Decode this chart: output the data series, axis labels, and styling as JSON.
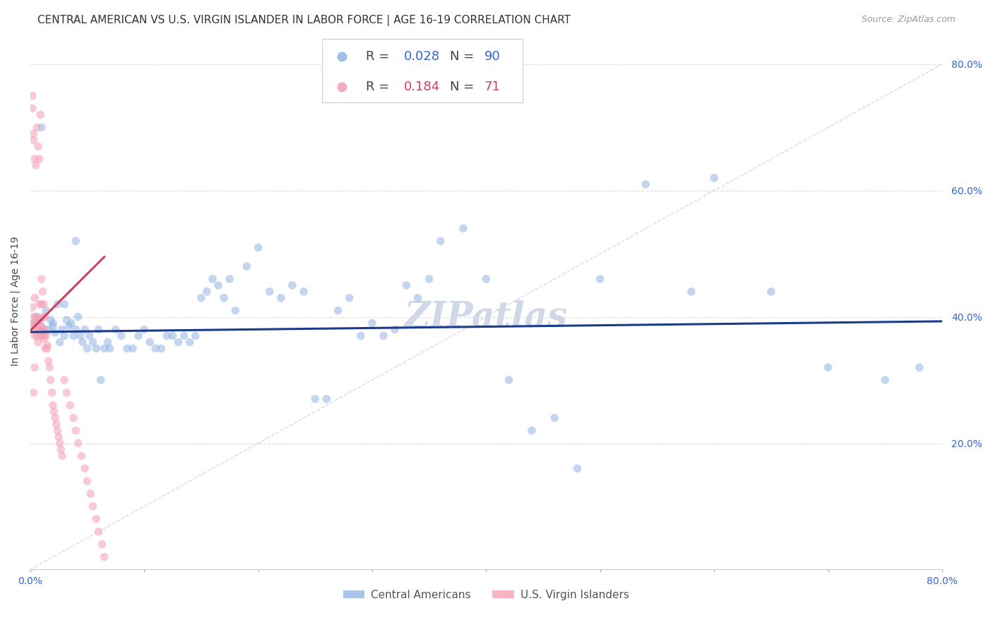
{
  "title": "CENTRAL AMERICAN VS U.S. VIRGIN ISLANDER IN LABOR FORCE | AGE 16-19 CORRELATION CHART",
  "source": "Source: ZipAtlas.com",
  "ylabel_label": "In Labor Force | Age 16-19",
  "xlim": [
    0.0,
    0.8
  ],
  "ylim": [
    0.0,
    0.85
  ],
  "xticks": [
    0.0,
    0.1,
    0.2,
    0.3,
    0.4,
    0.5,
    0.6,
    0.7,
    0.8
  ],
  "xticklabels": [
    "0.0%",
    "",
    "",
    "",
    "",
    "",
    "",
    "",
    "80.0%"
  ],
  "ytick_positions": [
    0.2,
    0.4,
    0.6,
    0.8
  ],
  "yticklabels": [
    "20.0%",
    "40.0%",
    "60.0%",
    "80.0%"
  ],
  "blue_color": "#92b4e3",
  "pink_color": "#f4a0b4",
  "line_blue": "#1a3a8a",
  "line_pink": "#d04060",
  "diagonal_color": "#cccccc",
  "R_blue": 0.028,
  "N_blue": 90,
  "R_pink": 0.184,
  "N_pink": 71,
  "blue_scatter_x": [
    0.004,
    0.006,
    0.008,
    0.01,
    0.012,
    0.014,
    0.016,
    0.018,
    0.02,
    0.022,
    0.024,
    0.026,
    0.028,
    0.03,
    0.032,
    0.034,
    0.036,
    0.038,
    0.04,
    0.042,
    0.044,
    0.046,
    0.048,
    0.05,
    0.052,
    0.055,
    0.058,
    0.06,
    0.062,
    0.065,
    0.068,
    0.07,
    0.075,
    0.08,
    0.085,
    0.09,
    0.095,
    0.1,
    0.105,
    0.11,
    0.115,
    0.12,
    0.125,
    0.13,
    0.135,
    0.14,
    0.145,
    0.15,
    0.155,
    0.16,
    0.165,
    0.17,
    0.175,
    0.18,
    0.19,
    0.2,
    0.21,
    0.22,
    0.23,
    0.24,
    0.25,
    0.26,
    0.27,
    0.28,
    0.29,
    0.3,
    0.31,
    0.32,
    0.33,
    0.34,
    0.35,
    0.36,
    0.38,
    0.4,
    0.42,
    0.44,
    0.46,
    0.48,
    0.5,
    0.54,
    0.58,
    0.6,
    0.65,
    0.7,
    0.75,
    0.78,
    0.01,
    0.02,
    0.03,
    0.04
  ],
  "blue_scatter_y": [
    0.39,
    0.4,
    0.395,
    0.385,
    0.375,
    0.41,
    0.38,
    0.395,
    0.385,
    0.375,
    0.42,
    0.36,
    0.38,
    0.37,
    0.395,
    0.385,
    0.39,
    0.37,
    0.38,
    0.4,
    0.37,
    0.36,
    0.38,
    0.35,
    0.37,
    0.36,
    0.35,
    0.38,
    0.3,
    0.35,
    0.36,
    0.35,
    0.38,
    0.37,
    0.35,
    0.35,
    0.37,
    0.38,
    0.36,
    0.35,
    0.35,
    0.37,
    0.37,
    0.36,
    0.37,
    0.36,
    0.37,
    0.43,
    0.44,
    0.46,
    0.45,
    0.43,
    0.46,
    0.41,
    0.48,
    0.51,
    0.44,
    0.43,
    0.45,
    0.44,
    0.27,
    0.27,
    0.41,
    0.43,
    0.37,
    0.39,
    0.37,
    0.38,
    0.45,
    0.43,
    0.46,
    0.52,
    0.54,
    0.46,
    0.3,
    0.22,
    0.24,
    0.16,
    0.46,
    0.61,
    0.44,
    0.62,
    0.44,
    0.32,
    0.3,
    0.32,
    0.7,
    0.39,
    0.42,
    0.52
  ],
  "pink_scatter_x": [
    0.002,
    0.002,
    0.003,
    0.003,
    0.004,
    0.004,
    0.005,
    0.005,
    0.006,
    0.006,
    0.007,
    0.007,
    0.008,
    0.008,
    0.009,
    0.009,
    0.01,
    0.01,
    0.011,
    0.011,
    0.012,
    0.012,
    0.013,
    0.013,
    0.014,
    0.015,
    0.015,
    0.016,
    0.017,
    0.018,
    0.019,
    0.02,
    0.021,
    0.022,
    0.023,
    0.024,
    0.025,
    0.026,
    0.027,
    0.028,
    0.03,
    0.032,
    0.035,
    0.038,
    0.04,
    0.042,
    0.045,
    0.048,
    0.05,
    0.053,
    0.055,
    0.058,
    0.06,
    0.063,
    0.065,
    0.002,
    0.003,
    0.003,
    0.004,
    0.005,
    0.006,
    0.007,
    0.008,
    0.009,
    0.01,
    0.011,
    0.012,
    0.013,
    0.002,
    0.003,
    0.004
  ],
  "pink_scatter_y": [
    0.38,
    0.415,
    0.4,
    0.39,
    0.37,
    0.43,
    0.4,
    0.385,
    0.39,
    0.37,
    0.36,
    0.38,
    0.375,
    0.42,
    0.395,
    0.385,
    0.42,
    0.37,
    0.38,
    0.4,
    0.37,
    0.365,
    0.38,
    0.35,
    0.37,
    0.355,
    0.35,
    0.33,
    0.32,
    0.3,
    0.28,
    0.26,
    0.25,
    0.24,
    0.23,
    0.22,
    0.21,
    0.2,
    0.19,
    0.18,
    0.3,
    0.28,
    0.26,
    0.24,
    0.22,
    0.2,
    0.18,
    0.16,
    0.14,
    0.12,
    0.1,
    0.08,
    0.06,
    0.04,
    0.02,
    0.73,
    0.69,
    0.68,
    0.65,
    0.64,
    0.7,
    0.67,
    0.65,
    0.72,
    0.46,
    0.44,
    0.42,
    0.4,
    0.75,
    0.28,
    0.32
  ],
  "watermark": "ZIPatlas",
  "watermark_color": "#d0d8e8",
  "grid_color": "#d8dde8",
  "title_fontsize": 11,
  "axis_label_fontsize": 10,
  "tick_fontsize": 10,
  "source_fontsize": 9,
  "scatter_size": 70,
  "scatter_alpha": 0.55,
  "blue_line_start_x": 0.0,
  "blue_line_end_x": 0.8,
  "blue_line_start_y": 0.376,
  "blue_line_end_y": 0.393,
  "pink_line_start_x": 0.0,
  "pink_line_end_x": 0.065,
  "pink_line_start_y": 0.378,
  "pink_line_end_y": 0.495
}
